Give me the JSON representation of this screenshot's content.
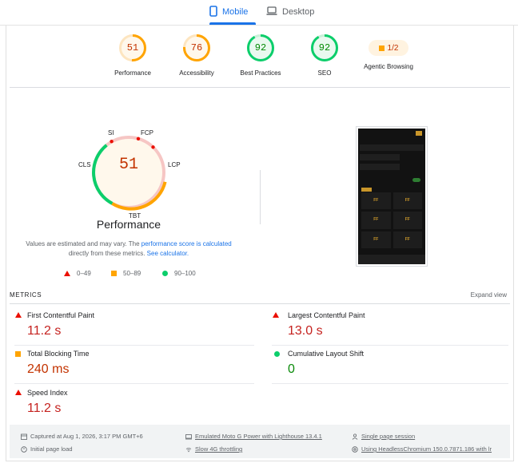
{
  "tabs": [
    {
      "label": "Mobile",
      "icon": "phone-icon",
      "active": true
    },
    {
      "label": "Desktop",
      "icon": "laptop-icon",
      "active": false
    }
  ],
  "categories": [
    {
      "score": "51",
      "label": "Performance",
      "status": "average",
      "fraction": 0.51
    },
    {
      "score": "76",
      "label": "Accessibility",
      "status": "average",
      "fraction": 0.76
    },
    {
      "score": "92",
      "label": "Best Practices",
      "status": "pass",
      "fraction": 0.92
    },
    {
      "score": "92",
      "label": "SEO",
      "status": "pass",
      "fraction": 0.92
    },
    {
      "score": "1/2",
      "label": "Agentic Browsing",
      "status": "average"
    }
  ],
  "performance": {
    "score": "51",
    "title": "Performance",
    "gauge_labels": [
      "SI",
      "FCP",
      "LCP",
      "TBT",
      "CLS"
    ],
    "note_prefix": "Values are estimated and may vary. The ",
    "note_link1": "performance score is calculated",
    "note_mid": "directly from these metrics. ",
    "note_link2": "See calculator."
  },
  "legend": [
    {
      "icon": "triangle-red-icon",
      "label": "0–49"
    },
    {
      "icon": "square-orange-icon",
      "label": "50–89"
    },
    {
      "icon": "circle-green-icon",
      "label": "90–100"
    }
  ],
  "metrics_header": "METRICS",
  "expand_label": "Expand view",
  "metrics": [
    {
      "name": "First Contentful Paint",
      "value": "11.2 s",
      "status": "fail"
    },
    {
      "name": "Largest Contentful Paint",
      "value": "13.0 s",
      "status": "fail"
    },
    {
      "name": "Total Blocking Time",
      "value": "240 ms",
      "status": "average"
    },
    {
      "name": "Cumulative Layout Shift",
      "value": "0",
      "status": "pass"
    },
    {
      "name": "Speed Index",
      "value": "11.2 s",
      "status": "fail"
    }
  ],
  "footer": {
    "captured": "Captured at Aug 1, 2026, 3:17 PM GMT+6",
    "initial": "Initial page load",
    "device": "Emulated Moto G Power with Lighthouse 13.4.1",
    "throttle": "Slow 4G throttling",
    "session": "Single page session",
    "browser": "Using HeadlessChromium 150.0.7871.186 with lr"
  },
  "phone_preview": {
    "tile_label": "FF"
  },
  "colors": {
    "fail": "#eb0f00",
    "average": "#ffa400",
    "pass": "#0cce6b",
    "link": "#1a73e8"
  }
}
